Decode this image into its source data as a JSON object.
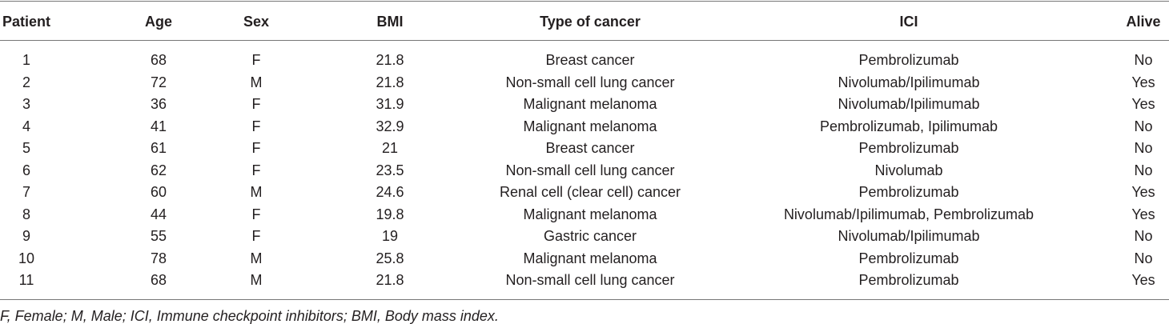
{
  "table": {
    "columns": [
      "Patient",
      "Age",
      "Sex",
      "BMI",
      "Type of cancer",
      "ICI",
      "Alive"
    ],
    "rows": [
      [
        1,
        68,
        "F",
        21.8,
        "Breast cancer",
        "Pembrolizumab",
        "No"
      ],
      [
        2,
        72,
        "M",
        21.8,
        "Non-small cell lung cancer",
        "Nivolumab/Ipilimumab",
        "Yes"
      ],
      [
        3,
        36,
        "F",
        31.9,
        "Malignant melanoma",
        "Nivolumab/Ipilimumab",
        "Yes"
      ],
      [
        4,
        41,
        "F",
        32.9,
        "Malignant melanoma",
        "Pembrolizumab, Ipilimumab",
        "No"
      ],
      [
        5,
        61,
        "F",
        21,
        "Breast cancer",
        "Pembrolizumab",
        "No"
      ],
      [
        6,
        62,
        "F",
        23.5,
        "Non-small cell lung cancer",
        "Nivolumab",
        "No"
      ],
      [
        7,
        60,
        "M",
        24.6,
        "Renal cell (clear cell) cancer",
        "Pembrolizumab",
        "Yes"
      ],
      [
        8,
        44,
        "F",
        19.8,
        "Malignant melanoma",
        "Nivolumab/Ipilimumab, Pembrolizumab",
        "Yes"
      ],
      [
        9,
        55,
        "F",
        19,
        "Gastric cancer",
        "Nivolumab/Ipilimumab",
        "No"
      ],
      [
        10,
        78,
        "M",
        25.8,
        "Malignant melanoma",
        "Pembrolizumab",
        "No"
      ],
      [
        11,
        68,
        "M",
        21.8,
        "Non-small cell lung cancer",
        "Pembrolizumab",
        "Yes"
      ]
    ],
    "footnote": "F, Female; M, Male; ICI, Immune checkpoint inhibitors; BMI, Body mass index."
  }
}
